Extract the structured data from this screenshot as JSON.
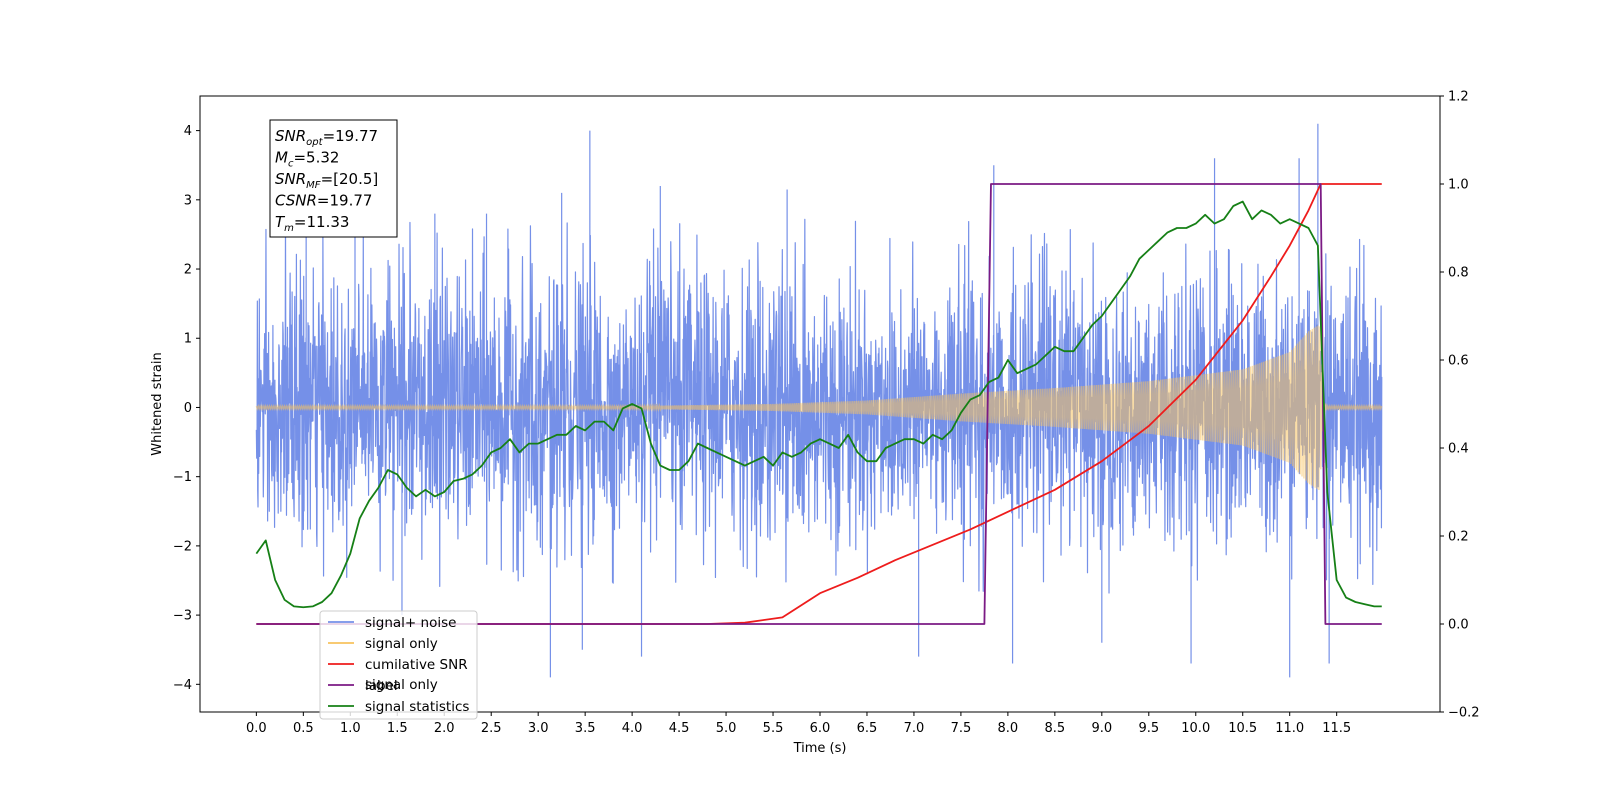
{
  "chart_data": {
    "type": "line",
    "xlabel": "Time (s)",
    "ylabel": "Whitened strain",
    "xlim": [
      -0.6,
      12.6
    ],
    "ylim": [
      -4.4,
      4.5
    ],
    "ylim_right": [
      -0.2,
      1.2
    ],
    "xticks": [
      "0.0",
      "0.5",
      "1.0",
      "1.5",
      "2.0",
      "2.5",
      "3.0",
      "3.5",
      "4.0",
      "4.5",
      "5.0",
      "5.5",
      "6.0",
      "6.5",
      "7.0",
      "7.5",
      "8.0",
      "8.5",
      "9.0",
      "9.5",
      "10.0",
      "10.5",
      "11.0",
      "11.5"
    ],
    "yticks_left": [
      "−4",
      "−3",
      "−2",
      "−1",
      "0",
      "1",
      "2",
      "3",
      "4"
    ],
    "yticks_right": [
      "−0.2",
      "0.0",
      "0.2",
      "0.4",
      "0.6",
      "0.8",
      "1.0",
      "1.2"
    ],
    "annotation": [
      {
        "base": "SNR",
        "sub": "opt",
        "value": "=19.77"
      },
      {
        "base": "M",
        "sub": "c",
        "value": "=5.32"
      },
      {
        "base": "SNR",
        "sub": "MF",
        "value": "=[20.5]"
      },
      {
        "base": "CSNR",
        "sub": "",
        "value": "=19.77"
      },
      {
        "base": "T",
        "sub": "m",
        "value": "=11.33"
      }
    ],
    "legend": [
      {
        "label": "signal+ noise",
        "color": "#7590e8"
      },
      {
        "label": "signal only",
        "color": "#f7c35e"
      },
      {
        "label": "cumilative SNR",
        "color": "#ee1c1c"
      },
      {
        "label": "label",
        "color": "#7b1a84"
      },
      {
        "label": "signal statistics",
        "color": "#168016"
      }
    ],
    "legend_hidden_text": "signal only",
    "legend_location": "bottom-left",
    "series": [
      {
        "name": "signal+ noise",
        "axis": "left",
        "color": "#7590e8",
        "description": "whitened noise plus signal, continuous band approx -1.2..1.2 with spikes",
        "peaks": [
          [
            0.53,
            2.7
          ],
          [
            1.05,
            3.0
          ],
          [
            1.55,
            -3.0
          ],
          [
            1.9,
            2.8
          ],
          [
            2.45,
            2.8
          ],
          [
            3.13,
            -3.9
          ],
          [
            3.25,
            3.1
          ],
          [
            3.47,
            -3.5
          ],
          [
            3.55,
            4.0
          ],
          [
            4.1,
            -3.6
          ],
          [
            4.3,
            3.2
          ],
          [
            5.65,
            3.15
          ],
          [
            7.05,
            -3.6
          ],
          [
            7.85,
            3.5
          ],
          [
            8.05,
            -3.7
          ],
          [
            9.0,
            -3.4
          ],
          [
            9.95,
            -3.7
          ],
          [
            10.2,
            3.6
          ],
          [
            11.0,
            -3.9
          ],
          [
            11.1,
            3.6
          ],
          [
            11.3,
            4.1
          ],
          [
            11.42,
            -3.7
          ]
        ]
      },
      {
        "name": "signal only",
        "axis": "left",
        "color": "#f7c35e",
        "envelope": [
          [
            0,
            0.02
          ],
          [
            4.0,
            0.02
          ],
          [
            5.5,
            0.05
          ],
          [
            6.5,
            0.1
          ],
          [
            7.5,
            0.2
          ],
          [
            8.5,
            0.28
          ],
          [
            9.5,
            0.38
          ],
          [
            10.5,
            0.55
          ],
          [
            11.0,
            0.8
          ],
          [
            11.2,
            1.1
          ],
          [
            11.32,
            1.2
          ],
          [
            11.36,
            0.1
          ],
          [
            11.4,
            0.02
          ],
          [
            11.98,
            0.02
          ]
        ]
      },
      {
        "name": "cumilative SNR",
        "axis": "right",
        "color": "#ee1c1c",
        "x": [
          0,
          4.8,
          5.2,
          5.6,
          6.0,
          6.4,
          6.8,
          7.2,
          7.6,
          8.0,
          8.5,
          9.0,
          9.5,
          10.0,
          10.5,
          10.8,
          11.0,
          11.2,
          11.33,
          11.4,
          11.98
        ],
        "y": [
          0,
          0,
          0.003,
          0.015,
          0.07,
          0.105,
          0.145,
          0.18,
          0.215,
          0.255,
          0.305,
          0.37,
          0.45,
          0.555,
          0.69,
          0.79,
          0.86,
          0.94,
          1.0,
          1.0,
          1.0
        ]
      },
      {
        "name": "label",
        "axis": "right",
        "color": "#7b1a84",
        "x": [
          0,
          7.75,
          7.82,
          11.33,
          11.38,
          11.98
        ],
        "y": [
          0,
          0,
          1.0,
          1.0,
          0,
          0
        ]
      },
      {
        "name": "signal statistics",
        "axis": "right",
        "color": "#168016",
        "x": [
          0,
          0.1,
          0.2,
          0.3,
          0.4,
          0.5,
          0.6,
          0.7,
          0.8,
          0.9,
          1.0,
          1.1,
          1.2,
          1.3,
          1.4,
          1.5,
          1.6,
          1.7,
          1.8,
          1.9,
          2.0,
          2.1,
          2.2,
          2.3,
          2.4,
          2.5,
          2.6,
          2.7,
          2.8,
          2.9,
          3.0,
          3.1,
          3.2,
          3.3,
          3.4,
          3.5,
          3.6,
          3.7,
          3.8,
          3.9,
          4.0,
          4.1,
          4.2,
          4.3,
          4.4,
          4.5,
          4.6,
          4.7,
          4.8,
          4.9,
          5.0,
          5.1,
          5.2,
          5.3,
          5.4,
          5.5,
          5.6,
          5.7,
          5.8,
          5.9,
          6.0,
          6.1,
          6.2,
          6.3,
          6.4,
          6.5,
          6.6,
          6.7,
          6.8,
          6.9,
          7.0,
          7.1,
          7.2,
          7.3,
          7.4,
          7.5,
          7.6,
          7.7,
          7.8,
          7.9,
          8.0,
          8.1,
          8.2,
          8.3,
          8.4,
          8.5,
          8.6,
          8.7,
          8.8,
          8.9,
          9.0,
          9.1,
          9.2,
          9.3,
          9.4,
          9.5,
          9.6,
          9.7,
          9.8,
          9.9,
          10.0,
          10.1,
          10.2,
          10.3,
          10.4,
          10.5,
          10.6,
          10.7,
          10.8,
          10.9,
          11.0,
          11.1,
          11.2,
          11.3,
          11.4,
          11.5,
          11.6,
          11.7,
          11.8,
          11.9,
          11.98
        ],
        "y": [
          0.16,
          0.19,
          0.1,
          0.055,
          0.04,
          0.038,
          0.04,
          0.05,
          0.07,
          0.11,
          0.16,
          0.24,
          0.28,
          0.31,
          0.35,
          0.34,
          0.31,
          0.29,
          0.305,
          0.29,
          0.3,
          0.325,
          0.33,
          0.34,
          0.36,
          0.39,
          0.4,
          0.42,
          0.39,
          0.41,
          0.41,
          0.42,
          0.43,
          0.43,
          0.45,
          0.44,
          0.46,
          0.46,
          0.44,
          0.49,
          0.5,
          0.49,
          0.41,
          0.36,
          0.35,
          0.35,
          0.37,
          0.41,
          0.4,
          0.39,
          0.38,
          0.37,
          0.36,
          0.37,
          0.38,
          0.36,
          0.39,
          0.38,
          0.39,
          0.41,
          0.42,
          0.41,
          0.4,
          0.43,
          0.39,
          0.37,
          0.37,
          0.4,
          0.41,
          0.42,
          0.42,
          0.41,
          0.43,
          0.42,
          0.44,
          0.48,
          0.51,
          0.52,
          0.55,
          0.56,
          0.6,
          0.57,
          0.58,
          0.59,
          0.61,
          0.63,
          0.62,
          0.62,
          0.65,
          0.68,
          0.7,
          0.73,
          0.76,
          0.79,
          0.83,
          0.85,
          0.87,
          0.89,
          0.9,
          0.9,
          0.91,
          0.93,
          0.91,
          0.92,
          0.95,
          0.96,
          0.92,
          0.94,
          0.93,
          0.91,
          0.92,
          0.91,
          0.9,
          0.86,
          0.3,
          0.1,
          0.06,
          0.05,
          0.045,
          0.04,
          0.04
        ]
      }
    ]
  }
}
